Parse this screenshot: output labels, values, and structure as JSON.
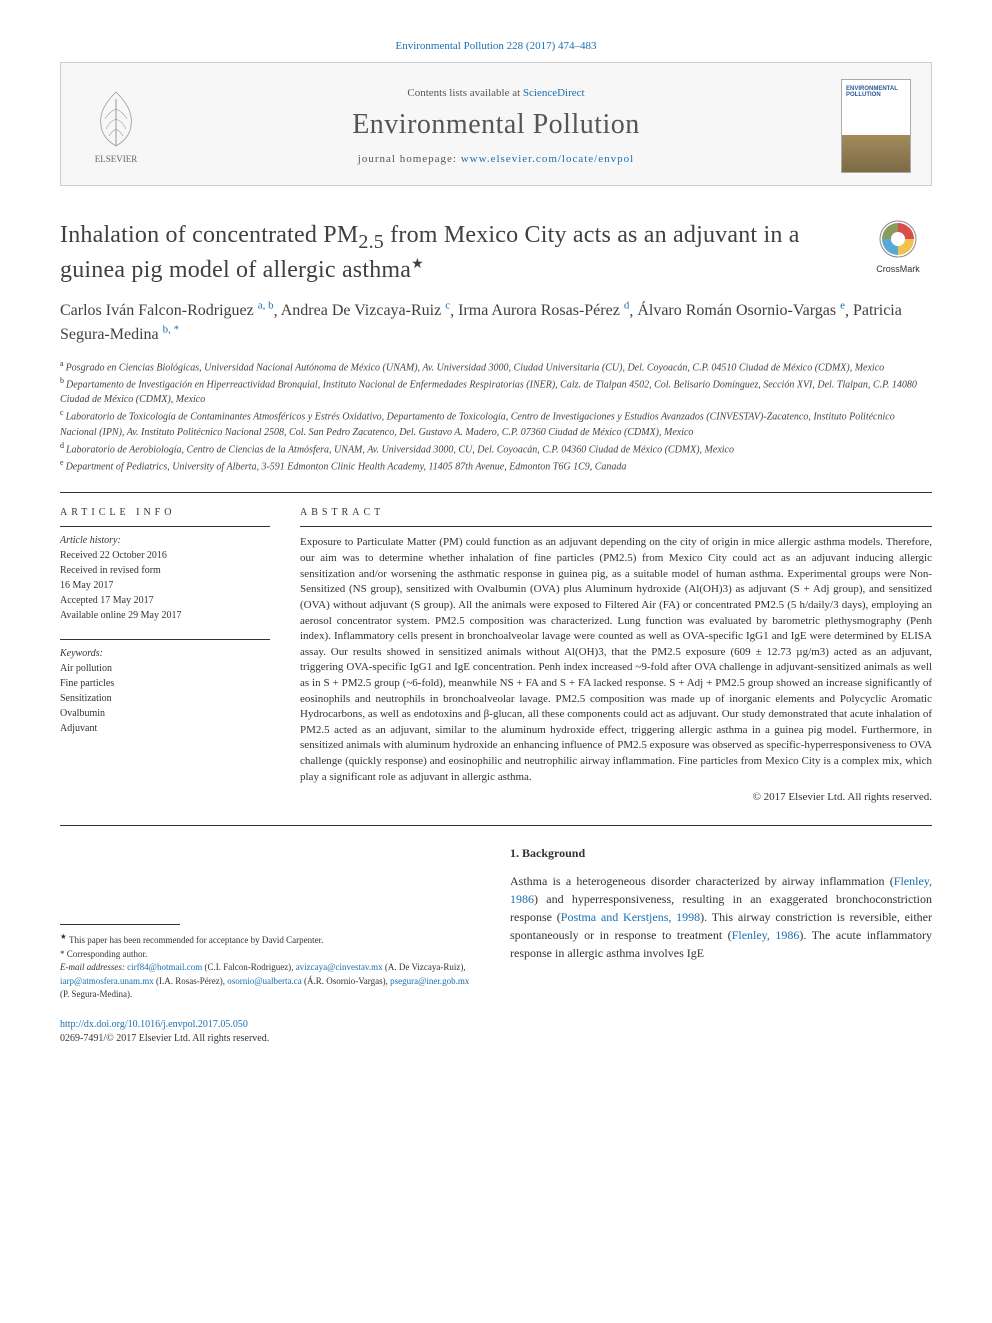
{
  "running_head": "Environmental Pollution 228 (2017) 474–483",
  "masthead": {
    "contents_prefix": "Contents lists available at ",
    "contents_link": "ScienceDirect",
    "journal": "Environmental Pollution",
    "homepage_prefix": "journal homepage: ",
    "homepage_url": "www.elsevier.com/locate/envpol"
  },
  "title_pre": "Inhalation of concentrated PM",
  "title_sub": "2.5",
  "title_post": " from Mexico City acts as an adjuvant in a guinea pig model of allergic asthma",
  "star": "★",
  "crossmark_label": "CrossMark",
  "authors": [
    {
      "name": "Carlos Iván Falcon-Rodriguez",
      "aff": "a, b"
    },
    {
      "name": "Andrea De Vizcaya-Ruiz",
      "aff": "c"
    },
    {
      "name": "Irma Aurora Rosas-Pérez",
      "aff": "d"
    },
    {
      "name": "Álvaro Román Osornio-Vargas",
      "aff": "e"
    },
    {
      "name": "Patricia Segura-Medina",
      "aff": "b, *"
    }
  ],
  "affiliations": [
    {
      "label": "a",
      "text": "Posgrado en Ciencias Biológicas, Universidad Nacional Autónoma de México (UNAM), Av. Universidad 3000, Ciudad Universitaria (CU), Del. Coyoacán, C.P. 04510 Ciudad de México (CDMX), Mexico"
    },
    {
      "label": "b",
      "text": "Departamento de Investigación en Hiperreactividad Bronquial, Instituto Nacional de Enfermedades Respiratorias (INER), Calz. de Tlalpan 4502, Col. Belisario Domínguez, Sección XVI, Del. Tlalpan, C.P. 14080 Ciudad de México (CDMX), Mexico"
    },
    {
      "label": "c",
      "text": "Laboratorio de Toxicología de Contaminantes Atmosféricos y Estrés Oxidativo, Departamento de Toxicología, Centro de Investigaciones y Estudios Avanzados (CINVESTAV)-Zacatenco, Instituto Politécnico Nacional (IPN), Av. Instituto Politécnico Nacional 2508, Col. San Pedro Zacatenco, Del. Gustavo A. Madero, C.P. 07360 Ciudad de México (CDMX), Mexico"
    },
    {
      "label": "d",
      "text": "Laboratorio de Aerobiología, Centro de Ciencias de la Atmósfera, UNAM, Av. Universidad 3000, CU, Del. Coyoacán, C.P. 04360 Ciudad de México (CDMX), Mexico"
    },
    {
      "label": "e",
      "text": "Department of Pediatrics, University of Alberta, 3-591 Edmonton Clinic Health Academy, 11405 87th Avenue, Edmonton T6G 1C9, Canada"
    }
  ],
  "article_info_head": "ARTICLE INFO",
  "abstract_head": "ABSTRACT",
  "history_label": "Article history:",
  "history": [
    "Received 22 October 2016",
    "Received in revised form",
    "16 May 2017",
    "Accepted 17 May 2017",
    "Available online 29 May 2017"
  ],
  "keywords_label": "Keywords:",
  "keywords": [
    "Air pollution",
    "Fine particles",
    "Sensitization",
    "Ovalbumin",
    "Adjuvant"
  ],
  "abstract": "Exposure to Particulate Matter (PM) could function as an adjuvant depending on the city of origin in mice allergic asthma models. Therefore, our aim was to determine whether inhalation of fine particles (PM2.5) from Mexico City could act as an adjuvant inducing allergic sensitization and/or worsening the asthmatic response in guinea pig, as a suitable model of human asthma. Experimental groups were Non-Sensitized (NS group), sensitized with Ovalbumin (OVA) plus Aluminum hydroxide (Al(OH)3) as adjuvant (S + Adj group), and sensitized (OVA) without adjuvant (S group). All the animals were exposed to Filtered Air (FA) or concentrated PM2.5 (5 h/daily/3 days), employing an aerosol concentrator system. PM2.5 composition was characterized. Lung function was evaluated by barometric plethysmography (Penh index). Inflammatory cells present in bronchoalveolar lavage were counted as well as OVA-specific IgG1 and IgE were determined by ELISA assay. Our results showed in sensitized animals without Al(OH)3, that the PM2.5 exposure (609 ± 12.73 µg/m3) acted as an adjuvant, triggering OVA-specific IgG1 and IgE concentration. Penh index increased ~9-fold after OVA challenge in adjuvant-sensitized animals as well as in S + PM2.5 group (~6-fold), meanwhile NS + FA and S + FA lacked response. S + Adj + PM2.5 group showed an increase significantly of eosinophils and neutrophils in bronchoalveolar lavage. PM2.5 composition was made up of inorganic elements and Polycyclic Aromatic Hydrocarbons, as well as endotoxins and β-glucan, all these components could act as adjuvant. Our study demonstrated that acute inhalation of PM2.5 acted as an adjuvant, similar to the aluminum hydroxide effect, triggering allergic asthma in a guinea pig model. Furthermore, in sensitized animals with aluminum hydroxide an enhancing influence of PM2.5 exposure was observed as specific-hyperresponsiveness to OVA challenge (quickly response) and eosinophilic and neutrophilic airway inflammation. Fine particles from Mexico City is a complex mix, which play a significant role as adjuvant in allergic asthma.",
  "abs_copyright": "© 2017 Elsevier Ltd. All rights reserved.",
  "section1_head": "1. Background",
  "section1_body_parts": [
    "Asthma is a heterogeneous disorder characterized by airway inflammation (",
    "Flenley, 1986",
    ") and hyperresponsiveness, resulting in an exaggerated bronchoconstriction response (",
    "Postma and Kerstjens, 1998",
    "). This airway constriction is reversible, either spontaneously or in response to treatment (",
    "Flenley, 1986",
    "). The acute inflammatory response in allergic asthma involves IgE"
  ],
  "footnotes": {
    "star": "This paper has been recommended for acceptance by David Carpenter.",
    "corr": "Corresponding author.",
    "emails_label": "E-mail addresses:",
    "emails": [
      {
        "addr": "cirf84@hotmail.com",
        "who": "(C.I. Falcon-Rodriguez)"
      },
      {
        "addr": "avizcaya@cinvestav.mx",
        "who": "(A. De Vizcaya-Ruiz)"
      },
      {
        "addr": "iarp@atmosfera.unam.mx",
        "who": "(I.A. Rosas-Pérez)"
      },
      {
        "addr": "osornio@ualberta.ca",
        "who": "(Á.R. Osornio-Vargas)"
      },
      {
        "addr": "psegura@iner.gob.mx",
        "who": "(P. Segura-Medina)"
      }
    ]
  },
  "doi_url": "http://dx.doi.org/10.1016/j.envpol.2017.05.050",
  "issn_line": "0269-7491/© 2017 Elsevier Ltd. All rights reserved."
}
